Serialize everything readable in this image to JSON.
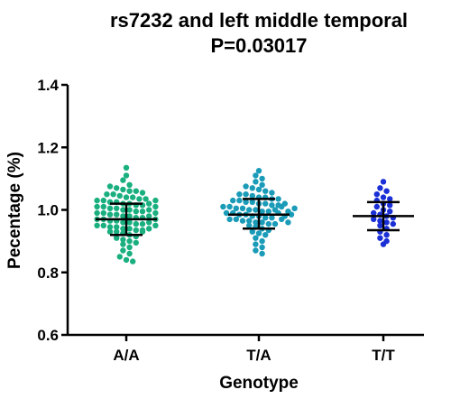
{
  "chart_data": {
    "type": "scatter",
    "title": "rs7232 and left middle temporal",
    "subtitle": "P=0.03017",
    "xlabel": "Genotype",
    "ylabel": "Pecentage (%)",
    "ylim": [
      0.6,
      1.4
    ],
    "yticks": [
      "0.6",
      "0.8",
      "1.0",
      "1.2",
      "1.4"
    ],
    "categories": [
      "A/A",
      "T/A",
      "T/T"
    ],
    "series": [
      {
        "category": "A/A",
        "color": "#1aaf7e",
        "mean": 0.97,
        "sd_low": 0.92,
        "sd_high": 1.02,
        "values": [
          1.135,
          1.11,
          1.095,
          1.08,
          1.075,
          1.07,
          1.065,
          1.06,
          1.06,
          1.055,
          1.05,
          1.05,
          1.045,
          1.04,
          1.04,
          1.035,
          1.035,
          1.03,
          1.03,
          1.025,
          1.025,
          1.02,
          1.02,
          1.015,
          1.015,
          1.01,
          1.01,
          1.005,
          1.005,
          1.0,
          1.0,
          0.995,
          0.995,
          0.99,
          0.99,
          0.985,
          0.985,
          0.98,
          0.98,
          0.975,
          0.975,
          0.97,
          0.97,
          0.965,
          0.965,
          0.96,
          0.96,
          0.955,
          0.955,
          0.95,
          0.95,
          0.945,
          0.945,
          0.94,
          0.94,
          0.935,
          0.935,
          0.93,
          0.93,
          0.925,
          0.92,
          0.915,
          0.91,
          0.905,
          0.9,
          0.895,
          0.89,
          0.88,
          0.87,
          0.86,
          0.85,
          0.84,
          0.835,
          1.02,
          1.0,
          0.98,
          0.96,
          0.94,
          0.99,
          0.97,
          1.01,
          0.95,
          0.93,
          1.03
        ]
      },
      {
        "category": "T/A",
        "color": "#1a9bb8",
        "mean": 0.985,
        "sd_low": 0.94,
        "sd_high": 1.035,
        "values": [
          1.125,
          1.11,
          1.1,
          1.09,
          1.08,
          1.075,
          1.07,
          1.065,
          1.06,
          1.055,
          1.05,
          1.05,
          1.045,
          1.04,
          1.04,
          1.035,
          1.035,
          1.03,
          1.03,
          1.025,
          1.025,
          1.02,
          1.02,
          1.015,
          1.015,
          1.01,
          1.01,
          1.005,
          1.005,
          1.0,
          1.0,
          0.995,
          0.995,
          0.99,
          0.99,
          0.985,
          0.985,
          0.98,
          0.98,
          0.975,
          0.975,
          0.97,
          0.97,
          0.965,
          0.965,
          0.96,
          0.96,
          0.955,
          0.955,
          0.95,
          0.945,
          0.94,
          0.935,
          0.93,
          0.925,
          0.92,
          0.91,
          0.9,
          0.89,
          0.88,
          0.87,
          0.86,
          1.0,
          0.99,
          0.98,
          1.01,
          0.97,
          1.02,
          0.96,
          0.985,
          0.995,
          1.005
        ]
      },
      {
        "category": "T/T",
        "color": "#1a2fd6",
        "mean": 0.98,
        "sd_low": 0.935,
        "sd_high": 1.025,
        "values": [
          1.09,
          1.07,
          1.06,
          1.05,
          1.04,
          1.035,
          1.03,
          1.02,
          1.015,
          1.01,
          1.0,
          0.995,
          0.99,
          0.985,
          0.98,
          0.975,
          0.97,
          0.965,
          0.96,
          0.955,
          0.95,
          0.94,
          0.93,
          0.92,
          0.91,
          0.9,
          0.89
        ]
      }
    ]
  }
}
